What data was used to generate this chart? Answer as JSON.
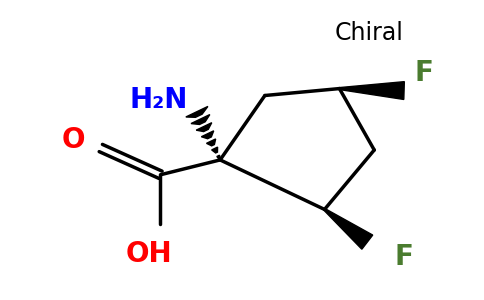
{
  "background_color": "#ffffff",
  "chiral_label": "Chiral",
  "chiral_color": "#000000",
  "chiral_fontsize": 17,
  "NH2_label": "H₂N",
  "NH2_color": "#0000ff",
  "NH2_fontsize": 20,
  "O_label": "O",
  "O_color": "#ff0000",
  "O_fontsize": 20,
  "OH_label": "OH",
  "OH_color": "#ff0000",
  "OH_fontsize": 20,
  "F1_label": "F",
  "F1_color": "#4a7c2f",
  "F1_fontsize": 20,
  "F2_label": "F",
  "F2_color": "#4a7c2f",
  "F2_fontsize": 20,
  "line_color": "#000000",
  "line_width": 2.5
}
